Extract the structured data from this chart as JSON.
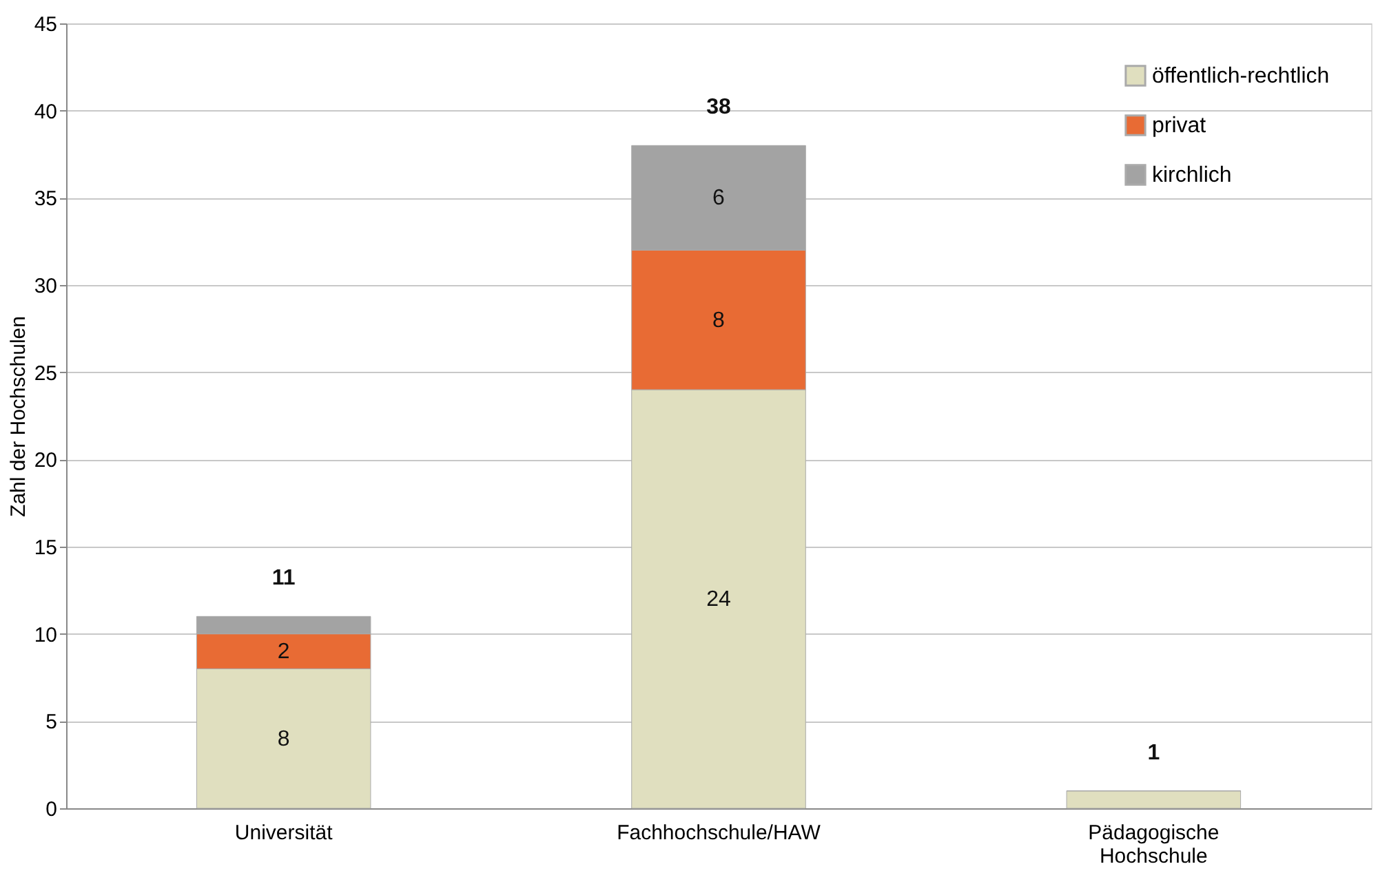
{
  "chart_data": {
    "type": "bar",
    "stacked": true,
    "ylabel": "Zahl der Hochschulen",
    "categories": [
      "Universität",
      "Fachhochschule/HAW",
      "Pädagogische Hochschule"
    ],
    "series": [
      {
        "name": "öffentlich-rechtlich",
        "color": "#e0dfbf",
        "values": [
          8,
          24,
          1
        ],
        "value_labels": [
          "8",
          "24",
          null
        ]
      },
      {
        "name": "privat",
        "color": "#e86b34",
        "values": [
          2,
          8,
          0
        ],
        "value_labels": [
          "2",
          "8",
          null
        ]
      },
      {
        "name": "kirchlich",
        "color": "#a3a3a3",
        "values": [
          1,
          6,
          0
        ],
        "value_labels": [
          null,
          "6",
          null
        ]
      }
    ],
    "totals": [
      "11",
      "38",
      "1"
    ],
    "ylim": [
      0,
      45
    ],
    "yticks": [
      0,
      5,
      10,
      15,
      20,
      25,
      30,
      35,
      40,
      45
    ],
    "grid": "y",
    "legend": "top right"
  }
}
